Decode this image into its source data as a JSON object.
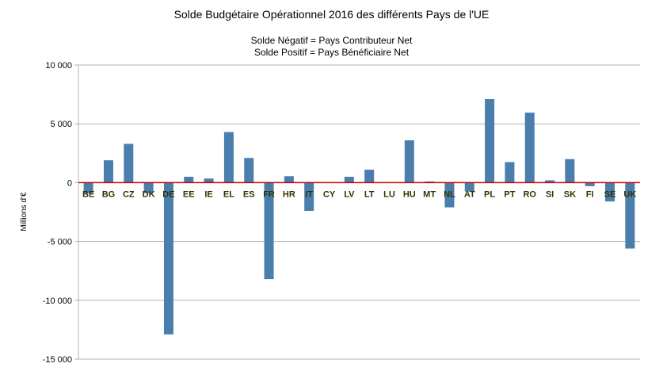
{
  "chart_data": {
    "type": "bar",
    "title": "Solde Budgétaire Opérationnel 2016 des différents Pays de l'UE",
    "subtitle_lines": [
      "Solde Négatif = Pays Contributeur Net",
      "Solde Positif = Pays Bénéficiaire Net"
    ],
    "xlabel": "",
    "ylabel": "Millions d'€",
    "ylim": [
      -15000,
      10000
    ],
    "yticks": [
      10000,
      5000,
      0,
      -5000,
      -10000,
      -15000
    ],
    "ytick_labels": [
      "10 000",
      "5 000",
      "0",
      "-5 000",
      "-10 000",
      "-15 000"
    ],
    "grid": true,
    "categories": [
      "BE",
      "BG",
      "CZ",
      "DK",
      "DE",
      "EE",
      "IE",
      "EL",
      "ES",
      "FR",
      "HR",
      "IT",
      "CY",
      "LV",
      "LT",
      "LU",
      "HU",
      "MT",
      "NL",
      "AT",
      "PL",
      "PT",
      "RO",
      "SI",
      "SK",
      "FI",
      "SE",
      "UK"
    ],
    "values": [
      -900,
      1900,
      3300,
      -900,
      -12900,
      500,
      350,
      4300,
      2100,
      -8200,
      550,
      -2400,
      0,
      500,
      1100,
      0,
      3600,
      100,
      -2100,
      -750,
      7100,
      1750,
      5950,
      200,
      2000,
      -300,
      -1600,
      -5600
    ],
    "colors": {
      "bar": "#4a7ead",
      "zero_line": "#cc0000",
      "grid": "#b3b3b3"
    }
  }
}
